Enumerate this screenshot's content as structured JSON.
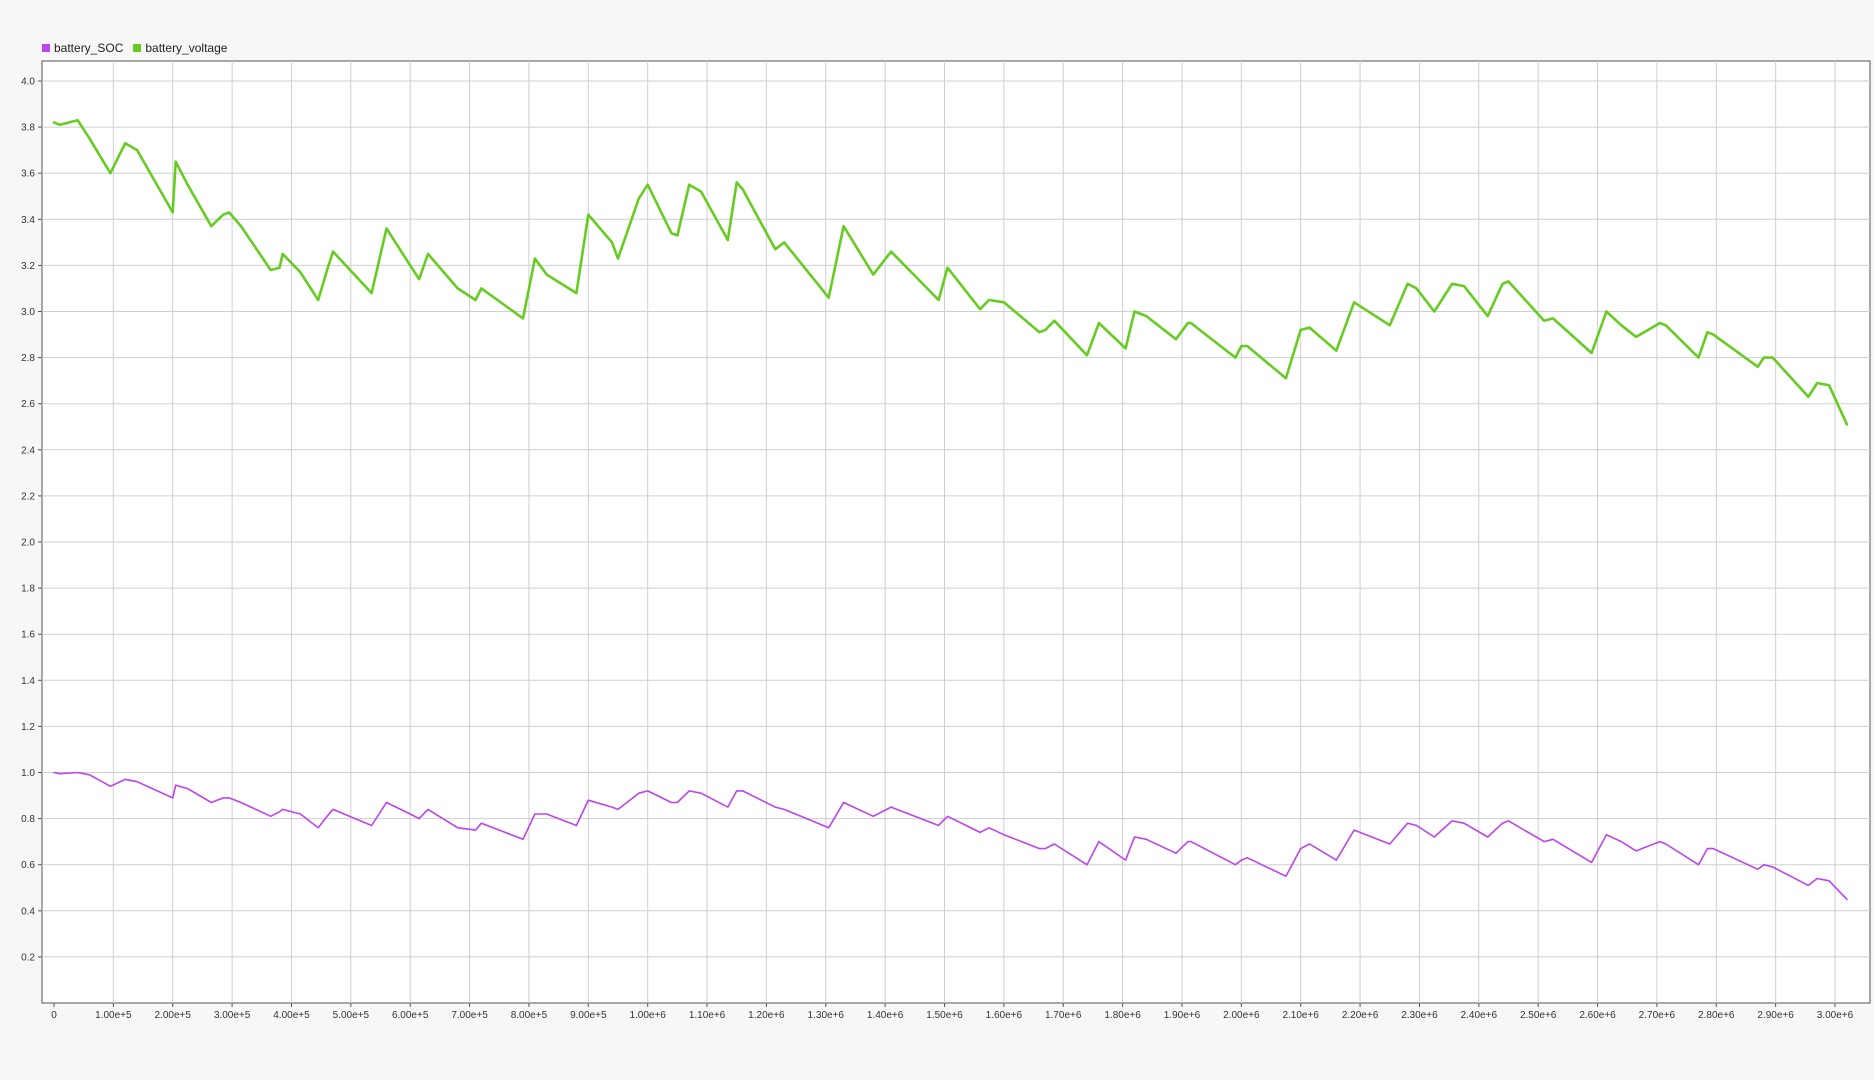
{
  "chart_data": {
    "type": "line",
    "title": "",
    "xlabel": "",
    "ylabel": "",
    "xlim": [
      0,
      3040000
    ],
    "ylim": [
      0,
      4.2
    ],
    "grid": true,
    "legend_position": "top-left",
    "x_ticks": [
      {
        "value": 0,
        "label": "0"
      },
      {
        "value": 100000,
        "label": "1.00e+5"
      },
      {
        "value": 200000,
        "label": "2.00e+5"
      },
      {
        "value": 300000,
        "label": "3.00e+5"
      },
      {
        "value": 400000,
        "label": "4.00e+5"
      },
      {
        "value": 500000,
        "label": "5.00e+5"
      },
      {
        "value": 600000,
        "label": "6.00e+5"
      },
      {
        "value": 700000,
        "label": "7.00e+5"
      },
      {
        "value": 800000,
        "label": "8.00e+5"
      },
      {
        "value": 900000,
        "label": "9.00e+5"
      },
      {
        "value": 1000000,
        "label": "1.00e+6"
      },
      {
        "value": 1100000,
        "label": "1.10e+6"
      },
      {
        "value": 1200000,
        "label": "1.20e+6"
      },
      {
        "value": 1300000,
        "label": "1.30e+6"
      },
      {
        "value": 1400000,
        "label": "1.40e+6"
      },
      {
        "value": 1500000,
        "label": "1.50e+6"
      },
      {
        "value": 1600000,
        "label": "1.60e+6"
      },
      {
        "value": 1700000,
        "label": "1.70e+6"
      },
      {
        "value": 1800000,
        "label": "1.80e+6"
      },
      {
        "value": 1900000,
        "label": "1.90e+6"
      },
      {
        "value": 2000000,
        "label": "2.00e+6"
      },
      {
        "value": 2100000,
        "label": "2.10e+6"
      },
      {
        "value": 2200000,
        "label": "2.20e+6"
      },
      {
        "value": 2300000,
        "label": "2.30e+6"
      },
      {
        "value": 2400000,
        "label": "2.40e+6"
      },
      {
        "value": 2500000,
        "label": "2.50e+6"
      },
      {
        "value": 2600000,
        "label": "2.60e+6"
      },
      {
        "value": 2700000,
        "label": "2.70e+6"
      },
      {
        "value": 2800000,
        "label": "2.80e+6"
      },
      {
        "value": 2900000,
        "label": "2.90e+6"
      },
      {
        "value": 3000000,
        "label": "3.00e+6"
      }
    ],
    "y_ticks": [
      {
        "value": 0.2,
        "label": "0.2"
      },
      {
        "value": 0.4,
        "label": "0.4"
      },
      {
        "value": 0.6,
        "label": "0.6"
      },
      {
        "value": 0.8,
        "label": "0.8"
      },
      {
        "value": 1.0,
        "label": "1.0"
      },
      {
        "value": 1.2,
        "label": "1.2"
      },
      {
        "value": 1.4,
        "label": "1.4"
      },
      {
        "value": 1.6,
        "label": "1.6"
      },
      {
        "value": 1.8,
        "label": "1.8"
      },
      {
        "value": 2.0,
        "label": "2.0"
      },
      {
        "value": 2.2,
        "label": "2.2"
      },
      {
        "value": 2.4,
        "label": "2.4"
      },
      {
        "value": 2.6,
        "label": "2.6"
      },
      {
        "value": 2.8,
        "label": "2.8"
      },
      {
        "value": 3.0,
        "label": "3.0"
      },
      {
        "value": 3.2,
        "label": "3.2"
      },
      {
        "value": 3.4,
        "label": "3.4"
      },
      {
        "value": 3.6,
        "label": "3.6"
      },
      {
        "value": 3.8,
        "label": "3.8"
      },
      {
        "value": 4.0,
        "label": "4.0"
      }
    ],
    "series": [
      {
        "name": "battery_SOC",
        "color": "#bb44ee",
        "x": [
          0,
          10000,
          40000,
          60000,
          95000,
          120000,
          140000,
          200000,
          205000,
          225000,
          265000,
          285000,
          295000,
          315000,
          365000,
          380000,
          385000,
          415000,
          445000,
          460000,
          470000,
          535000,
          560000,
          600000,
          615000,
          630000,
          680000,
          710000,
          720000,
          790000,
          810000,
          830000,
          880000,
          900000,
          940000,
          950000,
          985000,
          1000000,
          1040000,
          1050000,
          1070000,
          1090000,
          1135000,
          1150000,
          1160000,
          1215000,
          1230000,
          1305000,
          1330000,
          1380000,
          1410000,
          1490000,
          1505000,
          1560000,
          1575000,
          1600000,
          1660000,
          1670000,
          1685000,
          1740000,
          1760000,
          1805000,
          1820000,
          1840000,
          1890000,
          1910000,
          1915000,
          1990000,
          2000000,
          2010000,
          2075000,
          2100000,
          2115000,
          2160000,
          2190000,
          2250000,
          2280000,
          2295000,
          2325000,
          2355000,
          2375000,
          2415000,
          2440000,
          2450000,
          2510000,
          2525000,
          2590000,
          2615000,
          2640000,
          2665000,
          2705000,
          2715000,
          2770000,
          2785000,
          2795000,
          2870000,
          2880000,
          2895000,
          2955000,
          2970000,
          2990000,
          3020000
        ],
        "values": [
          1.0,
          0.995,
          1.0,
          0.99,
          0.94,
          0.97,
          0.96,
          0.89,
          0.945,
          0.93,
          0.87,
          0.89,
          0.89,
          0.87,
          0.81,
          0.83,
          0.84,
          0.82,
          0.76,
          0.81,
          0.84,
          0.77,
          0.87,
          0.82,
          0.8,
          0.84,
          0.76,
          0.75,
          0.78,
          0.71,
          0.82,
          0.82,
          0.77,
          0.88,
          0.85,
          0.84,
          0.91,
          0.92,
          0.87,
          0.87,
          0.92,
          0.91,
          0.85,
          0.92,
          0.92,
          0.85,
          0.84,
          0.76,
          0.87,
          0.81,
          0.85,
          0.77,
          0.81,
          0.74,
          0.76,
          0.73,
          0.67,
          0.67,
          0.69,
          0.6,
          0.7,
          0.62,
          0.72,
          0.71,
          0.65,
          0.7,
          0.7,
          0.6,
          0.62,
          0.63,
          0.55,
          0.67,
          0.69,
          0.62,
          0.75,
          0.69,
          0.78,
          0.77,
          0.72,
          0.79,
          0.78,
          0.72,
          0.78,
          0.79,
          0.7,
          0.71,
          0.61,
          0.73,
          0.7,
          0.66,
          0.7,
          0.69,
          0.6,
          0.67,
          0.67,
          0.58,
          0.6,
          0.59,
          0.51,
          0.54,
          0.53,
          0.45
        ]
      },
      {
        "name": "battery_voltage",
        "color": "#66cc22",
        "x": [
          0,
          10000,
          40000,
          60000,
          95000,
          120000,
          140000,
          200000,
          205000,
          225000,
          265000,
          285000,
          295000,
          315000,
          365000,
          380000,
          385000,
          415000,
          445000,
          460000,
          470000,
          535000,
          560000,
          600000,
          615000,
          630000,
          680000,
          710000,
          720000,
          790000,
          810000,
          830000,
          880000,
          900000,
          940000,
          950000,
          985000,
          1000000,
          1040000,
          1050000,
          1070000,
          1090000,
          1135000,
          1150000,
          1160000,
          1215000,
          1230000,
          1305000,
          1330000,
          1380000,
          1410000,
          1490000,
          1505000,
          1560000,
          1575000,
          1600000,
          1660000,
          1670000,
          1685000,
          1740000,
          1760000,
          1805000,
          1820000,
          1840000,
          1890000,
          1910000,
          1915000,
          1990000,
          2000000,
          2010000,
          2075000,
          2100000,
          2115000,
          2160000,
          2190000,
          2250000,
          2280000,
          2295000,
          2325000,
          2355000,
          2375000,
          2415000,
          2440000,
          2450000,
          2510000,
          2525000,
          2590000,
          2615000,
          2640000,
          2665000,
          2705000,
          2715000,
          2770000,
          2785000,
          2795000,
          2870000,
          2880000,
          2895000,
          2955000,
          2970000,
          2990000,
          3020000
        ],
        "values": [
          3.82,
          3.81,
          3.83,
          3.75,
          3.6,
          3.73,
          3.7,
          3.43,
          3.65,
          3.55,
          3.37,
          3.42,
          3.43,
          3.37,
          3.18,
          3.19,
          3.25,
          3.17,
          3.05,
          3.18,
          3.26,
          3.08,
          3.36,
          3.2,
          3.14,
          3.25,
          3.1,
          3.05,
          3.1,
          2.97,
          3.23,
          3.16,
          3.08,
          3.42,
          3.3,
          3.23,
          3.49,
          3.55,
          3.34,
          3.33,
          3.55,
          3.52,
          3.31,
          3.56,
          3.53,
          3.27,
          3.3,
          3.06,
          3.37,
          3.16,
          3.26,
          3.05,
          3.19,
          3.01,
          3.05,
          3.04,
          2.91,
          2.92,
          2.96,
          2.81,
          2.95,
          2.84,
          3.0,
          2.98,
          2.88,
          2.95,
          2.95,
          2.8,
          2.85,
          2.85,
          2.71,
          2.92,
          2.93,
          2.83,
          3.04,
          2.94,
          3.12,
          3.1,
          3.0,
          3.12,
          3.11,
          2.98,
          3.12,
          3.13,
          2.96,
          2.97,
          2.82,
          3.0,
          2.94,
          2.89,
          2.95,
          2.94,
          2.8,
          2.91,
          2.9,
          2.76,
          2.8,
          2.8,
          2.63,
          2.69,
          2.68,
          2.51
        ]
      }
    ]
  }
}
